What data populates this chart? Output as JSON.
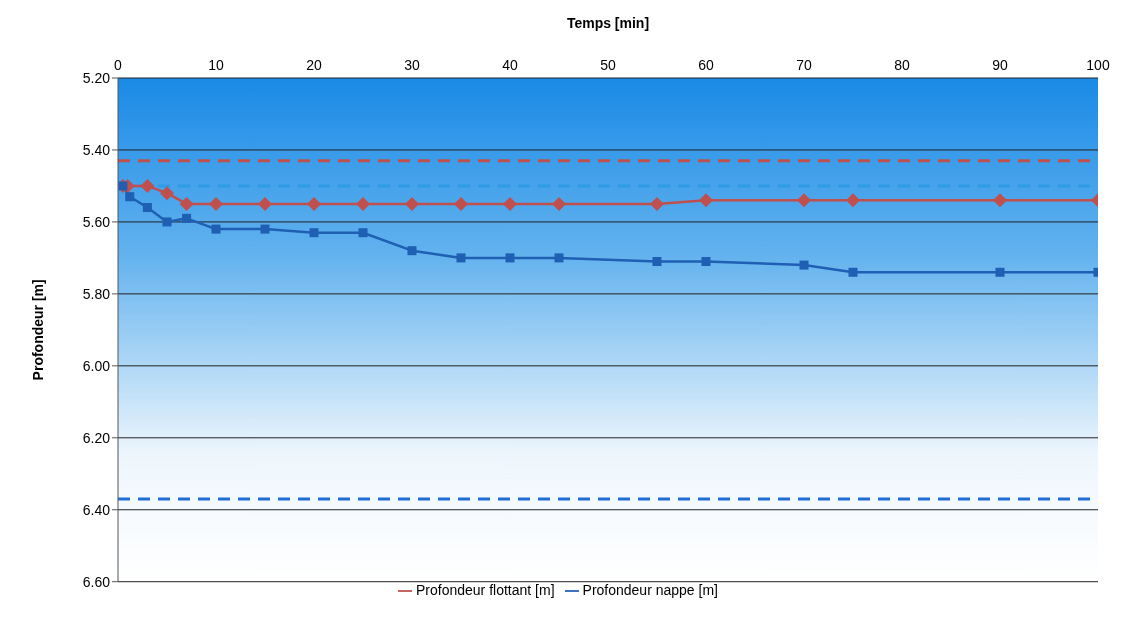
{
  "chart_data": {
    "type": "line",
    "xlabel": "Temps [min]",
    "ylabel": "Profondeur [m]",
    "xlim": [
      0,
      100
    ],
    "xticks": [
      0,
      10,
      20,
      30,
      40,
      50,
      60,
      70,
      80,
      90,
      100
    ],
    "ylim": [
      6.6,
      5.2
    ],
    "yticks": [
      {
        "value": 5.2,
        "label": "5.20"
      },
      {
        "value": 5.4,
        "label": "5.40"
      },
      {
        "value": 5.6,
        "label": "5.60"
      },
      {
        "value": 5.8,
        "label": "5.80"
      },
      {
        "value": 6.0,
        "label": "6.00"
      },
      {
        "value": 6.2,
        "label": "6.20"
      },
      {
        "value": 6.4,
        "label": "6.40"
      },
      {
        "value": 6.6,
        "label": "6.60"
      }
    ],
    "grid": "y",
    "legend": "bottom",
    "line_style": "solid",
    "series": [
      {
        "name": "Profondeur flottant [m]",
        "color": "#c0504d",
        "marker": "diamond",
        "x": [
          0.5,
          1,
          3,
          5,
          7,
          10,
          15,
          20,
          25,
          30,
          35,
          40,
          45,
          55,
          60,
          70,
          75,
          90,
          100
        ],
        "values": [
          5.5,
          5.5,
          5.5,
          5.52,
          5.55,
          5.55,
          5.55,
          5.55,
          5.55,
          5.55,
          5.55,
          5.55,
          5.55,
          5.55,
          5.54,
          5.54,
          5.54,
          5.54,
          5.54
        ]
      },
      {
        "name": "Profondeur nappe [m]",
        "color": "#1f5fb4",
        "marker": "square",
        "x": [
          0.5,
          1.2,
          3,
          5,
          7,
          10,
          15,
          20,
          25,
          30,
          35,
          40,
          45,
          55,
          60,
          70,
          75,
          90,
          100
        ],
        "values": [
          5.5,
          5.53,
          5.56,
          5.6,
          5.59,
          5.62,
          5.62,
          5.63,
          5.63,
          5.68,
          5.7,
          5.7,
          5.7,
          5.71,
          5.71,
          5.72,
          5.74,
          5.74,
          5.74
        ]
      }
    ],
    "ref_lines": [
      {
        "axis": "y",
        "value": 5.43,
        "color": "#c0504d",
        "line_style": "dashed"
      },
      {
        "axis": "y",
        "value": 5.5,
        "color": "#2e9be6",
        "line_style": "dashed"
      },
      {
        "axis": "y",
        "value": 6.37,
        "color": "#1f6fd6",
        "line_style": "dashed"
      }
    ]
  }
}
